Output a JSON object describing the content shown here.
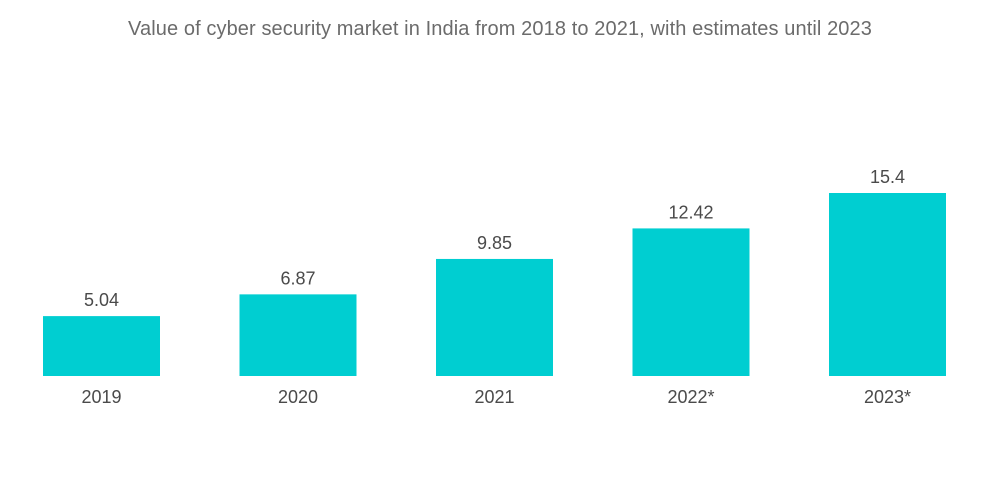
{
  "chart_data": {
    "type": "bar",
    "title": "Value of cyber security market in India from 2018 to 2021, with estimates until 2023",
    "categories": [
      "2019",
      "2020",
      "2021",
      "2022*",
      "2023*"
    ],
    "values": [
      5.04,
      6.87,
      9.85,
      12.42,
      15.4
    ],
    "value_labels": [
      "5.04",
      "6.87",
      "9.85",
      "12.42",
      "15.4"
    ],
    "xlabel": "",
    "ylabel": "",
    "ylim": [
      0,
      15.4
    ],
    "grid": false,
    "legend": "none",
    "colors": {
      "bar": "#00CED1",
      "text": "#4a4a4a",
      "title": "#6b6b6b"
    }
  }
}
